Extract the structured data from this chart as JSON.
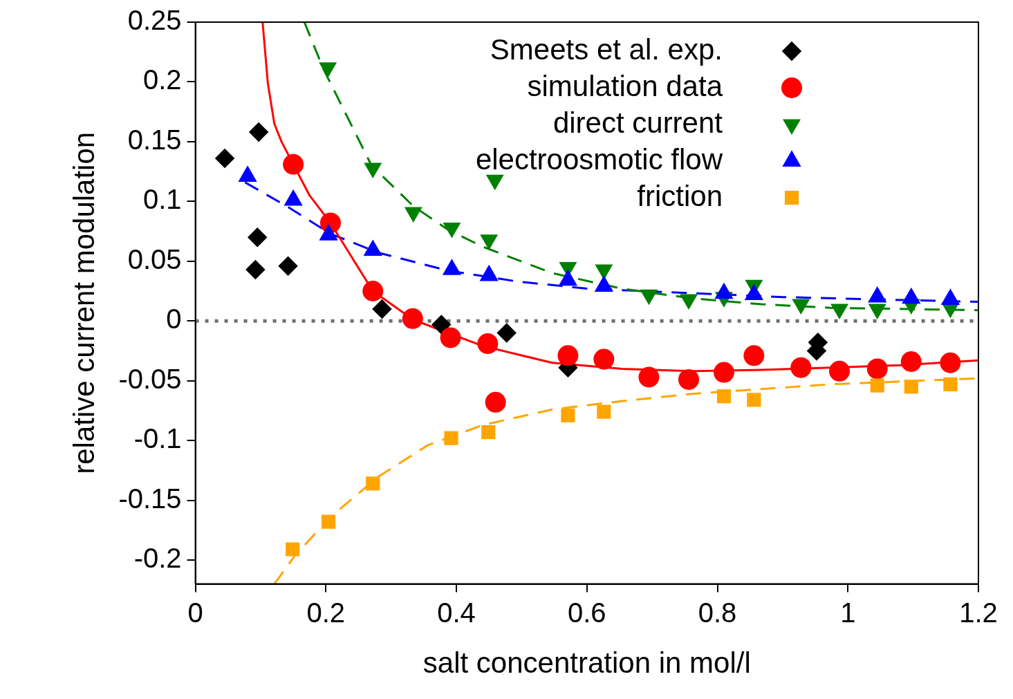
{
  "chart_data": {
    "type": "scatter",
    "xlabel": "salt concentration in mol/l",
    "ylabel": "relative current modulation",
    "xlim": [
      0,
      1.2
    ],
    "ylim": [
      -0.22,
      0.25
    ],
    "xticks": [
      0,
      0.2,
      0.4,
      0.6,
      0.8,
      1,
      1.2
    ],
    "yticks": [
      -0.2,
      -0.15,
      -0.1,
      -0.05,
      0,
      0.05,
      0.1,
      0.15,
      0.2,
      0.25
    ],
    "grid": false,
    "legend": "top right",
    "ref_lines": [
      {
        "axis": "y",
        "value": 0,
        "color": "#707070",
        "line_style": "dotted"
      }
    ],
    "series": [
      {
        "name": "Smeets et al. exp.",
        "type": "scatter",
        "marker": "diamond",
        "color": "#000000",
        "x": [
          0.045,
          0.097,
          0.095,
          0.092,
          0.142,
          0.286,
          0.377,
          0.477,
          0.571,
          0.954,
          0.952
        ],
        "values": [
          0.136,
          0.158,
          0.07,
          0.043,
          0.046,
          0.01,
          -0.003,
          -0.01,
          -0.039,
          -0.018,
          -0.025
        ]
      },
      {
        "name": "simulation data",
        "type": "scatter",
        "marker": "circle",
        "color": "#ff0000",
        "x": [
          0.15,
          0.207,
          0.272,
          0.333,
          0.391,
          0.448,
          0.46,
          0.571,
          0.626,
          0.695,
          0.756,
          0.81,
          0.856,
          0.928,
          0.987,
          1.045,
          1.097,
          1.157
        ],
        "values": [
          0.131,
          0.082,
          0.025,
          0.002,
          -0.014,
          -0.019,
          -0.068,
          -0.029,
          -0.032,
          -0.047,
          -0.049,
          -0.043,
          -0.029,
          -0.039,
          -0.042,
          -0.04,
          -0.034,
          -0.035
        ]
      },
      {
        "name": "direct current",
        "type": "scatter",
        "marker": "triangle-down",
        "color": "#008000",
        "x": [
          0.203,
          0.272,
          0.334,
          0.393,
          0.45,
          0.459,
          0.571,
          0.626,
          0.695,
          0.756,
          0.81,
          0.856,
          0.928,
          0.987,
          1.045,
          1.097,
          1.157
        ],
        "values": [
          0.212,
          0.128,
          0.091,
          0.078,
          0.068,
          0.118,
          0.045,
          0.043,
          0.022,
          0.018,
          0.02,
          0.03,
          0.014,
          0.01,
          0.01,
          0.014,
          0.011
        ]
      },
      {
        "name": "electroosmotic flow",
        "type": "scatter",
        "marker": "triangle",
        "color": "#0000ff",
        "x": [
          0.08,
          0.15,
          0.204,
          0.272,
          0.393,
          0.45,
          0.571,
          0.626,
          0.81,
          0.856,
          1.045,
          1.097,
          1.157
        ],
        "values": [
          0.121,
          0.101,
          0.072,
          0.059,
          0.043,
          0.038,
          0.034,
          0.029,
          0.023,
          0.022,
          0.02,
          0.019,
          0.018
        ]
      },
      {
        "name": "friction",
        "type": "scatter",
        "marker": "square",
        "color": "#ffa500",
        "x": [
          0.149,
          0.204,
          0.272,
          0.392,
          0.449,
          0.571,
          0.626,
          0.81,
          0.856,
          1.045,
          1.097,
          1.157
        ],
        "values": [
          -0.191,
          -0.168,
          -0.136,
          -0.098,
          -0.093,
          -0.079,
          -0.076,
          -0.063,
          -0.066,
          -0.054,
          -0.055,
          -0.053
        ]
      },
      {
        "type": "line",
        "marker": "none",
        "line_style": "solid",
        "color": "#ff0000",
        "x": [
          0.103,
          0.111,
          0.121,
          0.132,
          0.15,
          0.175,
          0.207,
          0.272,
          0.334,
          0.441,
          0.547,
          0.654,
          0.76,
          0.867,
          0.973,
          1.08,
          1.2
        ],
        "values": [
          0.25,
          0.199,
          0.165,
          0.15,
          0.131,
          0.105,
          0.082,
          0.025,
          0.001,
          -0.021,
          -0.035,
          -0.04,
          -0.042,
          -0.041,
          -0.039,
          -0.037,
          -0.033
        ]
      },
      {
        "type": "line",
        "marker": "none",
        "line_style": "dashed",
        "color": "#008000",
        "x": [
          0.167,
          0.196,
          0.228,
          0.27,
          0.334,
          0.388,
          0.441,
          0.547,
          0.654,
          0.76,
          0.867,
          0.973,
          1.2
        ],
        "values": [
          0.25,
          0.211,
          0.176,
          0.13,
          0.096,
          0.076,
          0.062,
          0.04,
          0.027,
          0.019,
          0.014,
          0.011,
          0.009
        ]
      },
      {
        "type": "line",
        "marker": "none",
        "line_style": "dashed",
        "color": "#0000ff",
        "x": [
          0.076,
          0.143,
          0.207,
          0.281,
          0.388,
          0.494,
          0.601,
          0.9,
          1.2
        ],
        "values": [
          0.116,
          0.095,
          0.073,
          0.057,
          0.042,
          0.033,
          0.027,
          0.02,
          0.016
        ]
      },
      {
        "type": "line",
        "marker": "none",
        "line_style": "dashed",
        "color": "#ffa500",
        "x": [
          0.121,
          0.153,
          0.207,
          0.281,
          0.356,
          0.441,
          0.547,
          0.654,
          0.76,
          0.867,
          0.973,
          1.2
        ],
        "values": [
          -0.22,
          -0.196,
          -0.164,
          -0.13,
          -0.104,
          -0.087,
          -0.074,
          -0.067,
          -0.061,
          -0.057,
          -0.053,
          -0.048
        ]
      }
    ]
  }
}
